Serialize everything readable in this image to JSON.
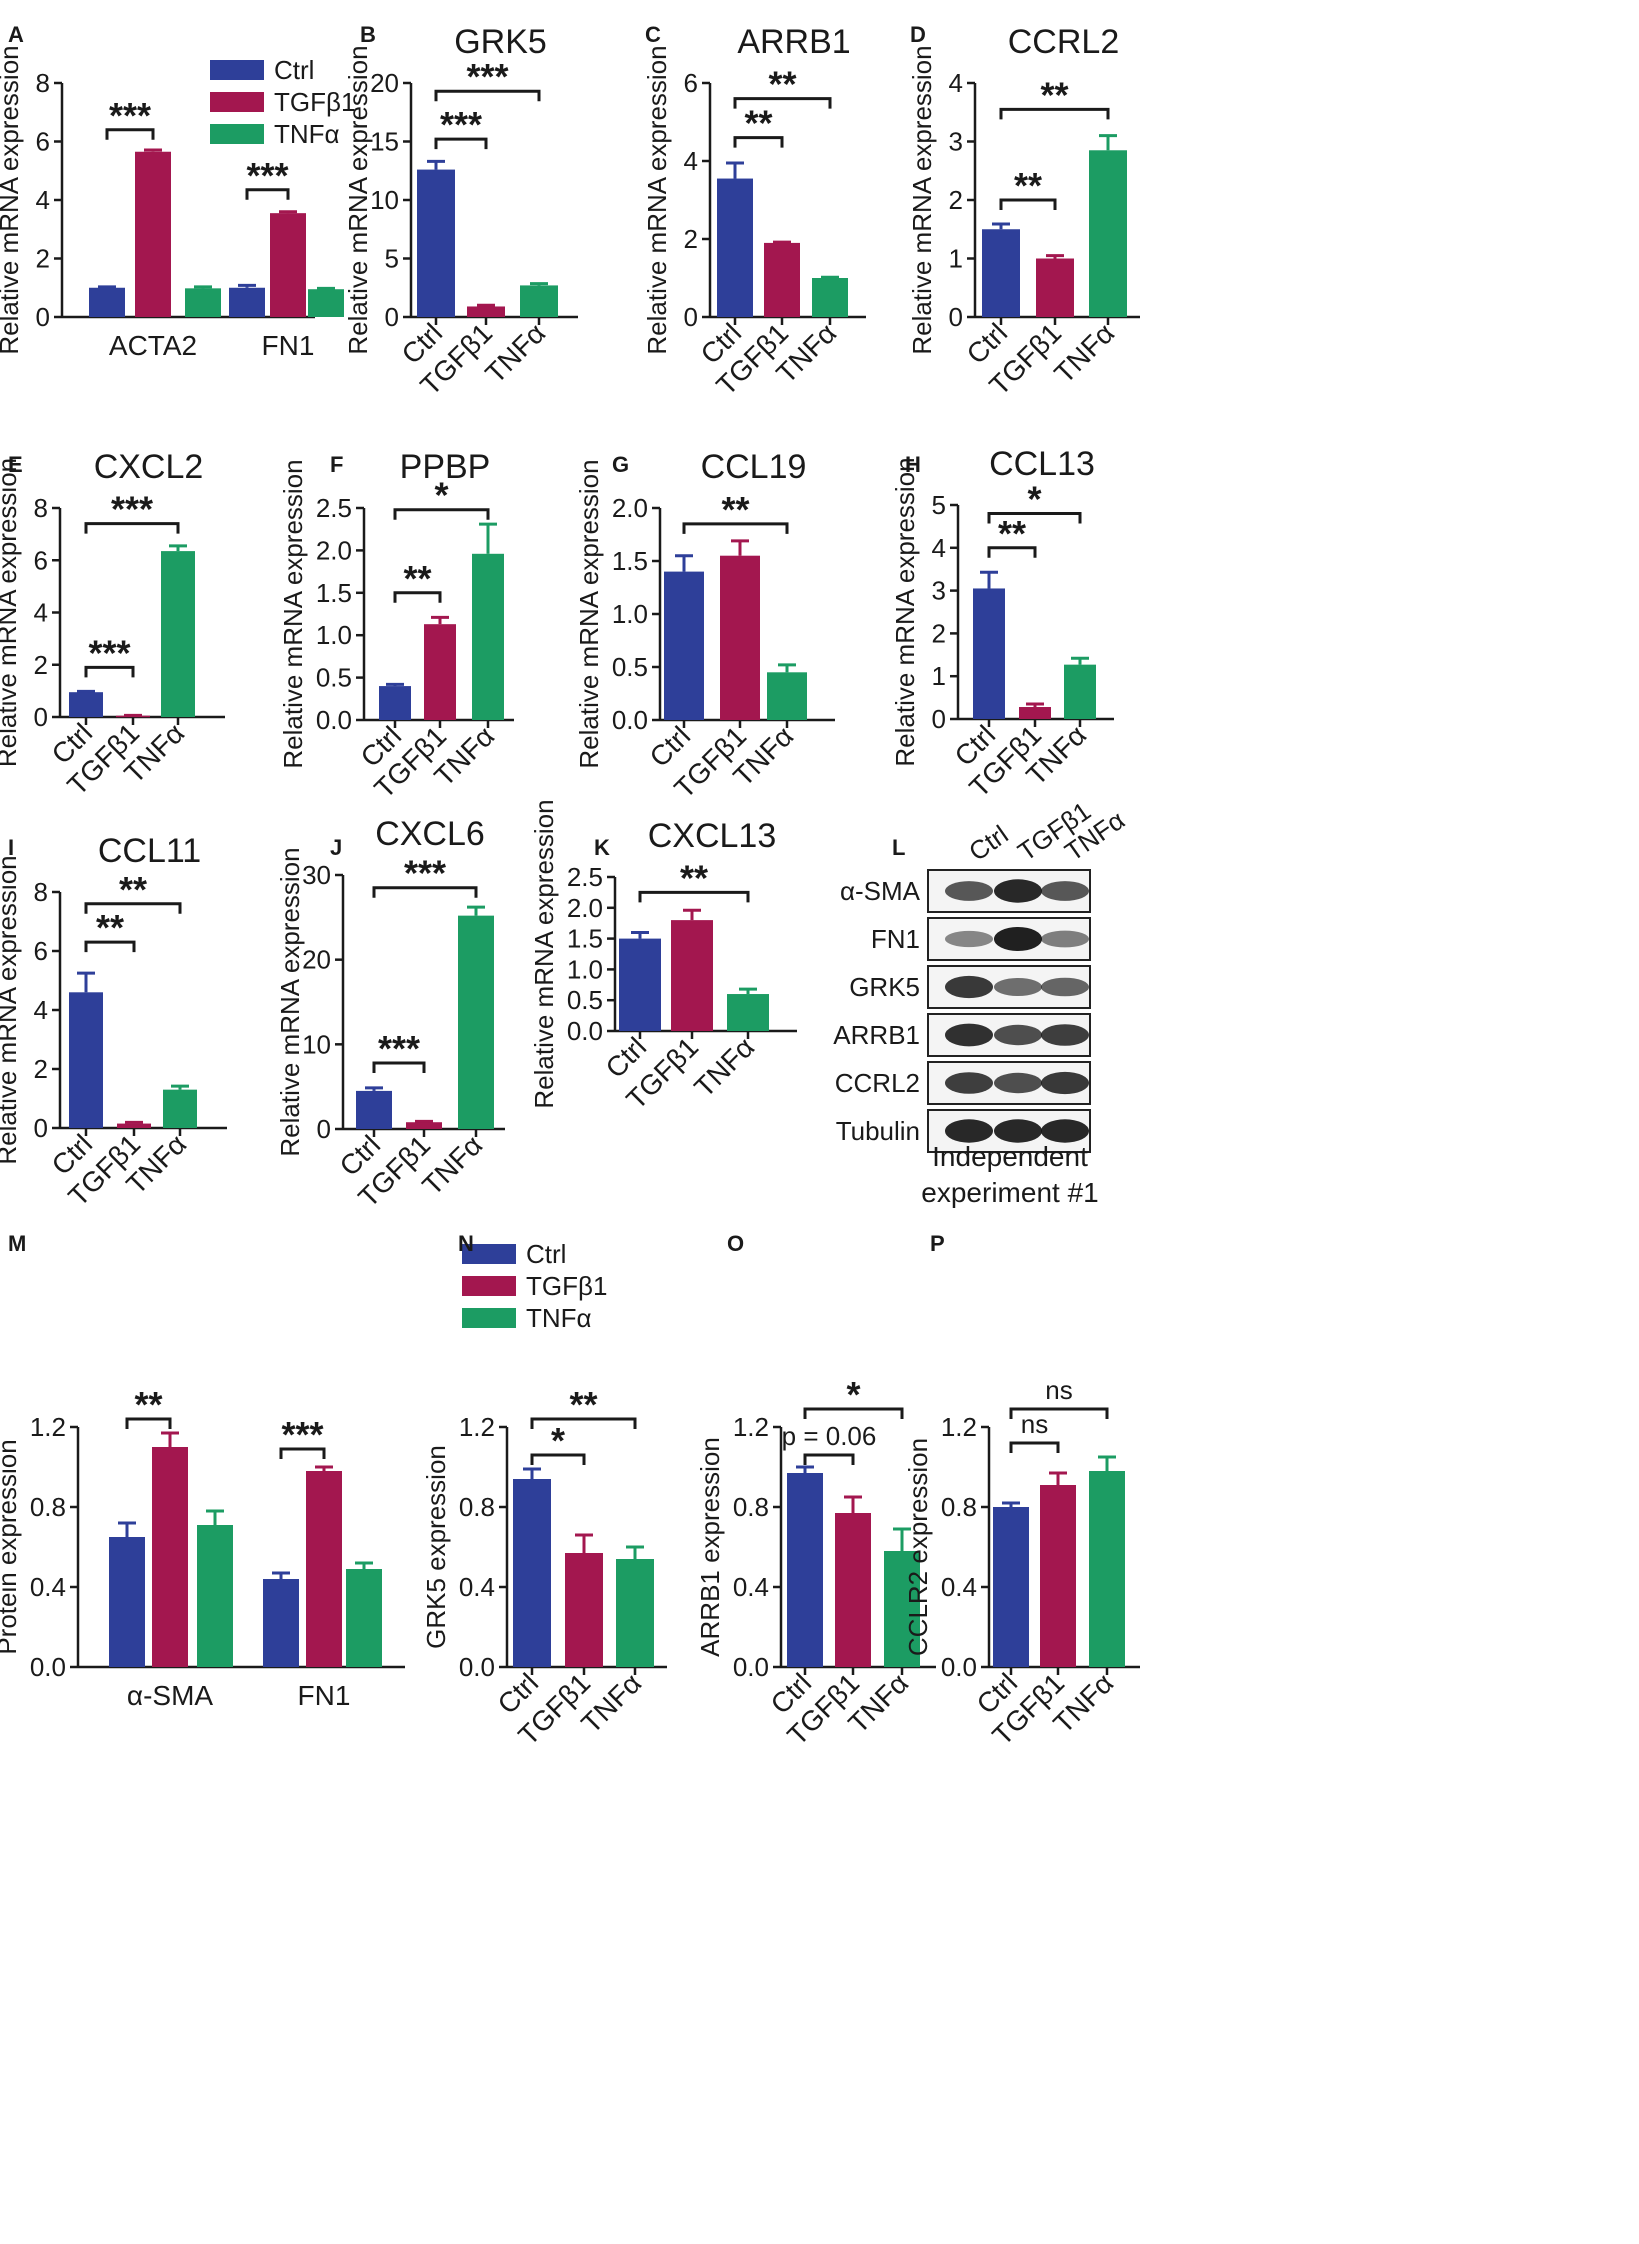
{
  "colors": {
    "Ctrl": "#2e3f99",
    "TGFβ1": "#a3174f",
    "TNFα": "#1c9c63",
    "axis": "#1a1a1a"
  },
  "chart_data": [
    {
      "id": "A",
      "type": "bar",
      "panel_label": "A",
      "title": "",
      "ylabel": "Relative mRNA expression",
      "ylim": [
        0,
        8
      ],
      "yticks": [
        "0",
        "2",
        "4",
        "6",
        "8"
      ],
      "categories": [
        "ACTA2",
        "FN1"
      ],
      "legend": [
        "Ctrl",
        "TGFβ1",
        "TNFα"
      ],
      "series": [
        {
          "name": "Ctrl",
          "values": [
            1.0,
            1.0
          ],
          "errors": [
            0.03,
            0.08
          ]
        },
        {
          "name": "TGFβ1",
          "values": [
            5.65,
            3.55
          ],
          "errors": [
            0.06,
            0.05
          ]
        },
        {
          "name": "TNFα",
          "values": [
            0.98,
            0.95
          ],
          "errors": [
            0.05,
            0.03
          ]
        }
      ],
      "annotations": [
        {
          "text": "***",
          "from": [
            0,
            0
          ],
          "to": [
            0,
            1
          ],
          "y": 6.4
        },
        {
          "text": "***",
          "from": [
            1,
            0
          ],
          "to": [
            1,
            1
          ],
          "y": 4.35
        }
      ]
    },
    {
      "id": "B",
      "type": "bar",
      "panel_label": "B",
      "title": "GRK5",
      "ylabel": "Relative mRNA expression",
      "ylim": [
        0,
        20
      ],
      "yticks": [
        "0",
        "5",
        "10",
        "15",
        "20"
      ],
      "categories": [
        "Ctrl",
        "TGFβ1",
        "TNFα"
      ],
      "values": [
        12.6,
        0.9,
        2.7
      ],
      "errors": [
        0.7,
        0.1,
        0.15
      ],
      "annotations": [
        {
          "text": "***",
          "from": 0,
          "to": 1,
          "y": 15.2
        },
        {
          "text": "***",
          "from": 0,
          "to": 2,
          "y": 19.3
        }
      ]
    },
    {
      "id": "C",
      "type": "bar",
      "panel_label": "C",
      "title": "ARRB1",
      "ylabel": "Relative mRNA expression",
      "ylim": [
        0,
        6
      ],
      "yticks": [
        "0",
        "2",
        "4",
        "6"
      ],
      "categories": [
        "Ctrl",
        "TGFβ1",
        "TNFα"
      ],
      "values": [
        3.55,
        1.9,
        1.0
      ],
      "errors": [
        0.4,
        0.02,
        0.02
      ],
      "annotations": [
        {
          "text": "**",
          "from": 0,
          "to": 1,
          "y": 4.6
        },
        {
          "text": "**",
          "from": 0,
          "to": 2,
          "y": 5.6
        }
      ]
    },
    {
      "id": "D",
      "type": "bar",
      "panel_label": "D",
      "title": "CCRL2",
      "ylabel": "Relative mRNA expression",
      "ylim": [
        0,
        4
      ],
      "yticks": [
        "0",
        "1",
        "2",
        "3",
        "4"
      ],
      "categories": [
        "Ctrl",
        "TGFβ1",
        "TNFα"
      ],
      "values": [
        1.5,
        1.0,
        2.85
      ],
      "errors": [
        0.09,
        0.05,
        0.25
      ],
      "annotations": [
        {
          "text": "**",
          "from": 0,
          "to": 1,
          "y": 2.0
        },
        {
          "text": "**",
          "from": 0,
          "to": 2,
          "y": 3.55
        }
      ]
    },
    {
      "id": "E",
      "type": "bar",
      "panel_label": "E",
      "title": "CXCL2",
      "ylabel": "Relative mRNA expression",
      "ylim": [
        0,
        8
      ],
      "yticks": [
        "0",
        "2",
        "4",
        "6",
        "8"
      ],
      "categories": [
        "Ctrl",
        "TGFβ1",
        "TNFα"
      ],
      "values": [
        0.95,
        0.05,
        6.35
      ],
      "errors": [
        0.03,
        0.01,
        0.2
      ],
      "annotations": [
        {
          "text": "***",
          "from": 0,
          "to": 1,
          "y": 1.9
        },
        {
          "text": "***",
          "from": 0,
          "to": 2,
          "y": 7.4
        }
      ]
    },
    {
      "id": "F",
      "type": "bar",
      "panel_label": "F",
      "title": "PPBP",
      "ylabel": "Relative mRNA expression",
      "ylim": [
        0,
        2.5
      ],
      "yticks": [
        "0.0",
        "0.5",
        "1.0",
        "1.5",
        "2.0",
        "2.5"
      ],
      "categories": [
        "Ctrl",
        "TGFβ1",
        "TNFα"
      ],
      "values": [
        0.4,
        1.13,
        1.96
      ],
      "errors": [
        0.02,
        0.08,
        0.35
      ],
      "annotations": [
        {
          "text": "**",
          "from": 0,
          "to": 1,
          "y": 1.5
        },
        {
          "text": "*",
          "from": 0,
          "to": 2,
          "y": 2.48
        }
      ]
    },
    {
      "id": "G",
      "type": "bar",
      "panel_label": "G",
      "title": "CCL19",
      "ylabel": "Relative mRNA expression",
      "ylim": [
        0,
        2.0
      ],
      "yticks": [
        "0.0",
        "0.5",
        "1.0",
        "1.5",
        "2.0"
      ],
      "categories": [
        "Ctrl",
        "TGFβ1",
        "TNFα"
      ],
      "values": [
        1.4,
        1.55,
        0.45
      ],
      "errors": [
        0.15,
        0.14,
        0.07
      ],
      "annotations": [
        {
          "text": "**",
          "from": 0,
          "to": 2,
          "y": 1.85
        }
      ]
    },
    {
      "id": "H",
      "type": "bar",
      "panel_label": "H",
      "title": "CCL13",
      "ylabel": "Relative mRNA expression",
      "ylim": [
        0,
        5
      ],
      "yticks": [
        "0",
        "1",
        "2",
        "3",
        "4",
        "5"
      ],
      "categories": [
        "Ctrl",
        "TGFβ1",
        "TNFα"
      ],
      "values": [
        3.05,
        0.28,
        1.27
      ],
      "errors": [
        0.38,
        0.07,
        0.15
      ],
      "annotations": [
        {
          "text": "**",
          "from": 0,
          "to": 1,
          "y": 4.0
        },
        {
          "text": "*",
          "from": 0,
          "to": 2,
          "y": 4.8
        }
      ]
    },
    {
      "id": "I",
      "type": "bar",
      "panel_label": "I",
      "title": "CCL11",
      "ylabel": "Relative mRNA expression",
      "ylim": [
        0,
        8
      ],
      "yticks": [
        "0",
        "2",
        "4",
        "6",
        "8"
      ],
      "categories": [
        "Ctrl",
        "TGFβ1",
        "TNFα"
      ],
      "values": [
        4.6,
        0.15,
        1.3
      ],
      "errors": [
        0.65,
        0.04,
        0.12
      ],
      "annotations": [
        {
          "text": "**",
          "from": 0,
          "to": 1,
          "y": 6.3
        },
        {
          "text": "**",
          "from": 0,
          "to": 2,
          "y": 7.6
        }
      ]
    },
    {
      "id": "J",
      "type": "bar",
      "panel_label": "J",
      "title": "CXCL6",
      "ylabel": "Relative mRNA expression",
      "ylim": [
        0,
        30
      ],
      "yticks": [
        "0",
        "10",
        "20",
        "30"
      ],
      "categories": [
        "Ctrl",
        "TGFβ1",
        "TNFα"
      ],
      "values": [
        4.5,
        0.8,
        25.2
      ],
      "errors": [
        0.35,
        0.1,
        1.0
      ],
      "annotations": [
        {
          "text": "***",
          "from": 0,
          "to": 1,
          "y": 7.8
        },
        {
          "text": "***",
          "from": 0,
          "to": 2,
          "y": 28.5
        }
      ]
    },
    {
      "id": "K",
      "type": "bar",
      "panel_label": "K",
      "title": "CXCL13",
      "ylabel": "Relative mRNA expression",
      "ylim": [
        0,
        2.5
      ],
      "yticks": [
        "0.0",
        "0.5",
        "1.0",
        "1.5",
        "2.0",
        "2.5"
      ],
      "categories": [
        "Ctrl",
        "TGFβ1",
        "TNFα"
      ],
      "values": [
        1.5,
        1.8,
        0.6
      ],
      "errors": [
        0.1,
        0.16,
        0.08
      ],
      "annotations": [
        {
          "text": "**",
          "from": 0,
          "to": 2,
          "y": 2.25
        }
      ]
    },
    {
      "id": "M",
      "type": "bar",
      "panel_label": "M",
      "title": "",
      "ylabel": "Protein expression",
      "ylim": [
        0,
        1.2
      ],
      "yticks": [
        "0.0",
        "0.4",
        "0.8",
        "1.2"
      ],
      "categories": [
        "α-SMA",
        "FN1"
      ],
      "legend": [
        "Ctrl",
        "TGFβ1",
        "TNFα"
      ],
      "series": [
        {
          "name": "Ctrl",
          "values": [
            0.65,
            0.44
          ],
          "errors": [
            0.07,
            0.03
          ]
        },
        {
          "name": "TGFβ1",
          "values": [
            1.1,
            0.98
          ],
          "errors": [
            0.07,
            0.02
          ]
        },
        {
          "name": "TNFα",
          "values": [
            0.71,
            0.49
          ],
          "errors": [
            0.07,
            0.03
          ]
        }
      ],
      "annotations": [
        {
          "text": "**",
          "from": [
            0,
            0
          ],
          "to": [
            0,
            1
          ],
          "y": 1.24
        },
        {
          "text": "***",
          "from": [
            1,
            0
          ],
          "to": [
            1,
            1
          ],
          "y": 1.09
        }
      ]
    },
    {
      "id": "N",
      "type": "bar",
      "panel_label": "N",
      "title": "",
      "ylabel": "GRK5 expression",
      "ylim": [
        0,
        1.2
      ],
      "yticks": [
        "0.0",
        "0.4",
        "0.8",
        "1.2"
      ],
      "categories": [
        "Ctrl",
        "TGFβ1",
        "TNFα"
      ],
      "values": [
        0.94,
        0.57,
        0.54
      ],
      "errors": [
        0.05,
        0.09,
        0.06
      ],
      "annotations": [
        {
          "text": "*",
          "from": 0,
          "to": 1,
          "y": 1.06
        },
        {
          "text": "**",
          "from": 0,
          "to": 2,
          "y": 1.24
        }
      ]
    },
    {
      "id": "O",
      "type": "bar",
      "panel_label": "O",
      "title": "",
      "ylabel": "ARRB1 expression",
      "ylim": [
        0,
        1.2
      ],
      "yticks": [
        "0.0",
        "0.4",
        "0.8",
        "1.2"
      ],
      "categories": [
        "Ctrl",
        "TGFβ1",
        "TNFα"
      ],
      "values": [
        0.97,
        0.77,
        0.58
      ],
      "errors": [
        0.03,
        0.08,
        0.11
      ],
      "annotations": [
        {
          "text": "p = 0.06",
          "from": 0,
          "to": 1,
          "y": 1.06
        },
        {
          "text": "*",
          "from": 0,
          "to": 2,
          "y": 1.29
        }
      ]
    },
    {
      "id": "P",
      "type": "bar",
      "panel_label": "P",
      "title": "",
      "ylabel": "CCLR2 expression",
      "ylim": [
        0,
        1.2
      ],
      "yticks": [
        "0.0",
        "0.4",
        "0.8",
        "1.2"
      ],
      "categories": [
        "Ctrl",
        "TGFβ1",
        "TNFα"
      ],
      "values": [
        0.8,
        0.91,
        0.98
      ],
      "errors": [
        0.02,
        0.06,
        0.07
      ],
      "annotations": [
        {
          "text": "ns",
          "from": 0,
          "to": 1,
          "y": 1.12
        },
        {
          "text": "ns",
          "from": 0,
          "to": 2,
          "y": 1.29
        }
      ]
    }
  ],
  "western_blot": {
    "panel_label": "L",
    "lanes": [
      "Ctrl",
      "TGFβ1",
      "TNFα"
    ],
    "rows": [
      {
        "label": "α-SMA",
        "intensity": [
          0.65,
          0.95,
          0.65
        ]
      },
      {
        "label": "FN1",
        "intensity": [
          0.35,
          1.0,
          0.4
        ]
      },
      {
        "label": "GRK5",
        "intensity": [
          0.85,
          0.5,
          0.55
        ]
      },
      {
        "label": "ARRB1",
        "intensity": [
          0.9,
          0.7,
          0.8
        ]
      },
      {
        "label": "CCRL2",
        "intensity": [
          0.8,
          0.7,
          0.85
        ]
      },
      {
        "label": "Tubulin",
        "intensity": [
          0.95,
          0.95,
          0.95
        ]
      }
    ],
    "caption_line1": "Independent",
    "caption_line2": "experiment #1"
  }
}
